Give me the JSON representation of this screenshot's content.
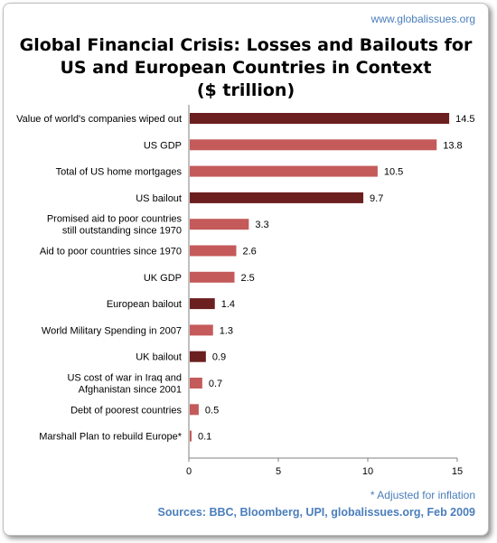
{
  "header": {
    "site_url": "www.globalissues.org"
  },
  "footer": {
    "inflation_note": "* Adjusted for inflation",
    "sources": "Sources: BBC, Bloomberg, UPI, globalissues.org, Feb 2009"
  },
  "colors": {
    "bailout": "#6b1f1f",
    "other": "#c55a5a",
    "link": "#4a7ebb"
  },
  "chart_data": {
    "type": "bar",
    "orientation": "horizontal",
    "title": "Global Financial Crisis: Losses and Bailouts for US and European Countries in Context ($ trillion)",
    "title_lines": [
      "Global Financial Crisis: Losses and Bailouts for",
      "US and European Countries in Context",
      "($ trillion)"
    ],
    "xlim": [
      0,
      15
    ],
    "xticks": [
      0,
      5,
      10,
      15
    ],
    "grid": false,
    "legend": "none",
    "bars": [
      {
        "label_lines": [
          "Value of world's companies wiped out"
        ],
        "value": 14.5,
        "value_label": "14.5",
        "group": "bailout"
      },
      {
        "label_lines": [
          "US GDP"
        ],
        "value": 13.8,
        "value_label": "13.8",
        "group": "other"
      },
      {
        "label_lines": [
          "Total of US home mortgages"
        ],
        "value": 10.5,
        "value_label": "10.5",
        "group": "other"
      },
      {
        "label_lines": [
          "US bailout"
        ],
        "value": 9.7,
        "value_label": "9.7",
        "group": "bailout"
      },
      {
        "label_lines": [
          "Promised aid to poor countries",
          "still outstanding since 1970"
        ],
        "value": 3.3,
        "value_label": "3.3",
        "group": "other"
      },
      {
        "label_lines": [
          "Aid to poor countries since 1970"
        ],
        "value": 2.6,
        "value_label": "2.6",
        "group": "other"
      },
      {
        "label_lines": [
          "UK GDP"
        ],
        "value": 2.5,
        "value_label": "2.5",
        "group": "other"
      },
      {
        "label_lines": [
          "European bailout"
        ],
        "value": 1.4,
        "value_label": "1.4",
        "group": "bailout"
      },
      {
        "label_lines": [
          "World Military Spending in 2007"
        ],
        "value": 1.3,
        "value_label": "1.3",
        "group": "other"
      },
      {
        "label_lines": [
          "UK bailout"
        ],
        "value": 0.9,
        "value_label": "0.9",
        "group": "bailout"
      },
      {
        "label_lines": [
          "US cost of war in Iraq and",
          "Afghanistan since 2001"
        ],
        "value": 0.7,
        "value_label": "0.7",
        "group": "other"
      },
      {
        "label_lines": [
          "Debt of poorest countries"
        ],
        "value": 0.5,
        "value_label": "0.5",
        "group": "other"
      },
      {
        "label_lines": [
          "Marshall Plan to rebuild Europe*"
        ],
        "value": 0.1,
        "value_label": "0.1",
        "group": "other"
      }
    ]
  }
}
